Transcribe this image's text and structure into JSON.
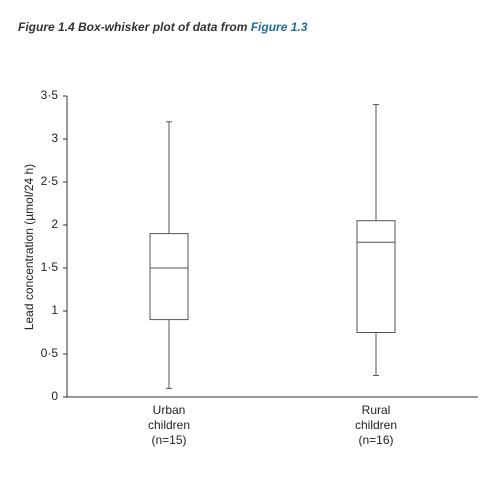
{
  "chart_data": {
    "type": "box",
    "title": "Figure 1.4 Box-whisker plot of data from",
    "title_ref": "Figure 1.3",
    "y_label": "Lead concentration (µmol/24 h)",
    "categories": [
      [
        "Urban",
        "children",
        "(n=15)"
      ],
      [
        "Rural",
        "children",
        "(n=16)"
      ]
    ],
    "boxes": [
      {
        "min": 0.1,
        "q1": 0.9,
        "median": 1.5,
        "q3": 1.9,
        "max": 3.2
      },
      {
        "min": 0.25,
        "q1": 0.75,
        "median": 1.8,
        "q3": 2.05,
        "max": 3.4
      }
    ],
    "color": "#555555",
    "ylim": [
      0,
      3.5
    ],
    "yticks": [
      0,
      {
        "value": 0.5,
        "label": "0·5"
      },
      1,
      {
        "value": 1.5,
        "label": "1·5"
      },
      2,
      {
        "value": 2.5,
        "label": "2·5"
      },
      3,
      {
        "value": 3.5,
        "label": "3·5"
      }
    ]
  }
}
